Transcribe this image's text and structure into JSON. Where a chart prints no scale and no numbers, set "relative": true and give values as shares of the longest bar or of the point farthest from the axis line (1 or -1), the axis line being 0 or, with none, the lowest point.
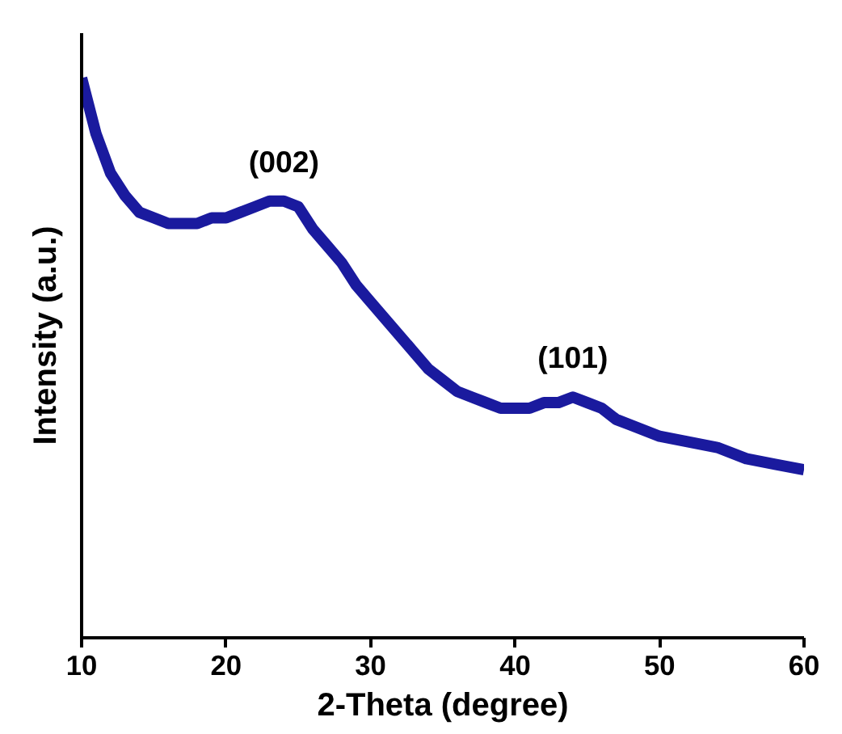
{
  "chart_data": {
    "type": "line",
    "relative": true,
    "xlabel": "2-Theta (degree)",
    "ylabel": "Intensity (a.u.)",
    "xlim": [
      10,
      60
    ],
    "xticks": [
      10,
      20,
      30,
      40,
      50,
      60
    ],
    "grid": false,
    "marker": "none",
    "line_style": "solid",
    "annotations": [
      {
        "text": "(002)",
        "x": 24,
        "y": 0.78
      },
      {
        "text": "(101)",
        "x": 44,
        "y": 0.43
      }
    ],
    "series": [
      {
        "color": "#1a1a9e",
        "x": [
          10,
          11,
          12,
          13,
          14,
          15,
          16,
          17,
          18,
          19,
          20,
          21,
          22,
          23,
          24,
          25,
          26,
          27,
          28,
          29,
          30,
          31,
          32,
          33,
          34,
          35,
          36,
          37,
          38,
          39,
          40,
          41,
          42,
          43,
          44,
          45,
          46,
          47,
          48,
          49,
          50,
          52,
          54,
          56,
          58,
          60
        ],
        "values": [
          1.0,
          0.9,
          0.83,
          0.79,
          0.76,
          0.75,
          0.74,
          0.74,
          0.74,
          0.75,
          0.75,
          0.76,
          0.77,
          0.78,
          0.78,
          0.77,
          0.73,
          0.7,
          0.67,
          0.63,
          0.6,
          0.57,
          0.54,
          0.51,
          0.48,
          0.46,
          0.44,
          0.43,
          0.42,
          0.41,
          0.41,
          0.41,
          0.42,
          0.42,
          0.43,
          0.42,
          0.41,
          0.39,
          0.38,
          0.37,
          0.36,
          0.35,
          0.34,
          0.32,
          0.31,
          0.3
        ]
      }
    ]
  }
}
